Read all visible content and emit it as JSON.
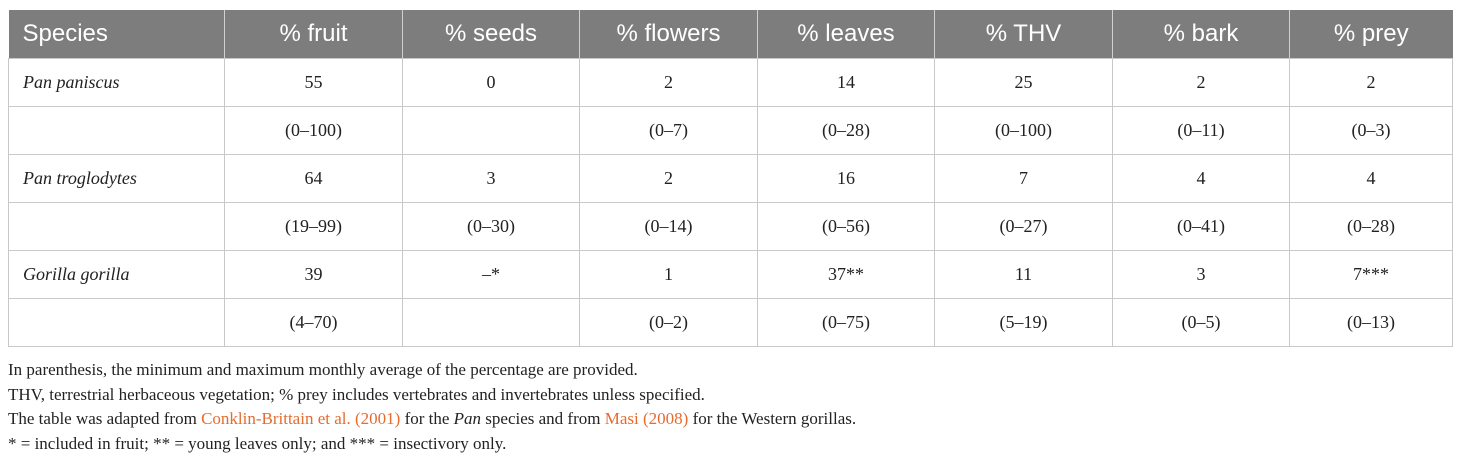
{
  "table": {
    "headers": [
      "Species",
      "% fruit",
      "% seeds",
      "% flowers",
      "% leaves",
      "% THV",
      "% bark",
      "% prey"
    ],
    "rows": [
      [
        "Pan paniscus",
        "55",
        "0",
        "2",
        "14",
        "25",
        "2",
        "2"
      ],
      [
        "",
        "(0–100)",
        "",
        "(0–7)",
        "(0–28)",
        "(0–100)",
        "(0–11)",
        "(0–3)"
      ],
      [
        "Pan troglodytes",
        "64",
        "3",
        "2",
        "16",
        "7",
        "4",
        "4"
      ],
      [
        "",
        "(19–99)",
        "(0–30)",
        "(0–14)",
        "(0–56)",
        "(0–27)",
        "(0–41)",
        "(0–28)"
      ],
      [
        "Gorilla gorilla",
        "39",
        "–*",
        "1",
        "37**",
        "11",
        "3",
        "7***"
      ],
      [
        "",
        "(4–70)",
        "",
        "(0–2)",
        "(0–75)",
        "(5–19)",
        "(0–5)",
        "(0–13)"
      ]
    ]
  },
  "notes": {
    "line1": "In parenthesis, the minimum and maximum monthly average of the percentage are provided.",
    "line2": "THV, terrestrial herbaceous vegetation; % prey includes vertebrates and invertebrates unless specified.",
    "line3": {
      "part1": "The table was adapted from ",
      "ref1": "Conklin-Brittain et al. (2001)",
      "part2": " for the ",
      "italic1": "Pan",
      "part3": " species and from ",
      "ref2": "Masi (2008)",
      "part4": " for the Western gorillas."
    },
    "line4": "* = included in fruit; ** = young leaves only; and *** = insectivory only."
  },
  "colors": {
    "header_bg": "#7d7d7d",
    "header_text": "#ffffff",
    "link": "#e66b2e",
    "grid": "#c8c8c8"
  }
}
